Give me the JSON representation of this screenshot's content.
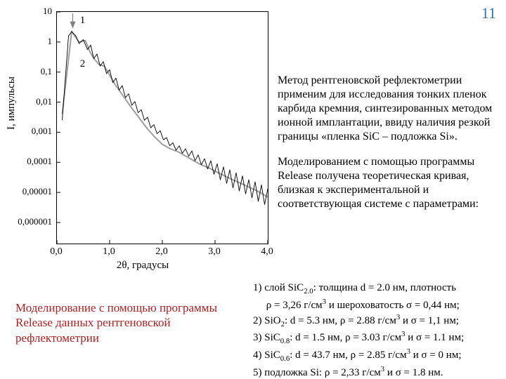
{
  "page_number": "11",
  "chart": {
    "type": "line",
    "ylabel": "I, импульсы",
    "xlabel": "2θ, градусы",
    "colors": {
      "axis": "#000000",
      "curve1_experimental": "#000000",
      "curve2_model": "#9e9e9e",
      "arrow_fill": "#808080",
      "background": "#ffffff"
    },
    "line_widths": {
      "curve1": 0.9,
      "curve2": 2.0
    },
    "xlim": [
      0.0,
      4.0
    ],
    "x_ticks": [
      {
        "v": 0.0,
        "label": "0,0"
      },
      {
        "v": 1.0,
        "label": "1,0"
      },
      {
        "v": 2.0,
        "label": "2,0"
      },
      {
        "v": 3.0,
        "label": "3,0"
      },
      {
        "v": 4.0,
        "label": "4,0"
      }
    ],
    "y_scale": "log",
    "ylim_log10": [
      -6.7,
      1.0
    ],
    "y_ticks": [
      {
        "log10": 1.0,
        "label": "10"
      },
      {
        "log10": 0.0,
        "label": "1"
      },
      {
        "log10": -1.0,
        "label": "0,1"
      },
      {
        "log10": -2.0,
        "label": "0,01"
      },
      {
        "log10": -3.0,
        "label": "0,001"
      },
      {
        "log10": -4.0,
        "label": "0,0001"
      },
      {
        "log10": -5.0,
        "label": "0,00001"
      },
      {
        "log10": -6.0,
        "label": "0,000001"
      }
    ],
    "legend_marks": [
      {
        "id": "1",
        "x": 0.45,
        "y_log10": 0.7
      },
      {
        "id": "2",
        "x": 0.45,
        "y_log10": -0.75
      }
    ],
    "arrow": {
      "x": 0.3,
      "tip_y_log10": 0.45,
      "tail_y_log10": 0.95
    },
    "series2_model": [
      {
        "x": 0.1,
        "y_log10": -2.4
      },
      {
        "x": 0.28,
        "y_log10": 0.35
      },
      {
        "x": 0.42,
        "y_log10": 0.0
      },
      {
        "x": 0.54,
        "y_log10": 0.05
      },
      {
        "x": 0.62,
        "y_log10": -0.3
      },
      {
        "x": 0.7,
        "y_log10": -0.55
      },
      {
        "x": 0.8,
        "y_log10": -0.75
      },
      {
        "x": 0.9,
        "y_log10": -0.8
      },
      {
        "x": 1.0,
        "y_log10": -1.1
      },
      {
        "x": 1.1,
        "y_log10": -1.4
      },
      {
        "x": 1.2,
        "y_log10": -1.65
      },
      {
        "x": 1.3,
        "y_log10": -1.9
      },
      {
        "x": 1.4,
        "y_log10": -2.15
      },
      {
        "x": 1.55,
        "y_log10": -2.5
      },
      {
        "x": 1.7,
        "y_log10": -2.85
      },
      {
        "x": 1.85,
        "y_log10": -3.15
      },
      {
        "x": 2.0,
        "y_log10": -3.4
      },
      {
        "x": 2.15,
        "y_log10": -3.55
      },
      {
        "x": 2.3,
        "y_log10": -3.65
      },
      {
        "x": 2.5,
        "y_log10": -3.85
      },
      {
        "x": 2.7,
        "y_log10": -4.05
      },
      {
        "x": 2.9,
        "y_log10": -4.2
      },
      {
        "x": 3.1,
        "y_log10": -4.38
      },
      {
        "x": 3.3,
        "y_log10": -4.55
      },
      {
        "x": 3.55,
        "y_log10": -4.75
      },
      {
        "x": 3.8,
        "y_log10": -4.95
      },
      {
        "x": 4.0,
        "y_log10": -5.15
      }
    ],
    "series1_experimental": [
      {
        "x": 0.1,
        "y_log10": -2.6
      },
      {
        "x": 0.22,
        "y_log10": 0.2
      },
      {
        "x": 0.28,
        "y_log10": 0.35
      },
      {
        "x": 0.36,
        "y_log10": 0.2
      },
      {
        "x": 0.42,
        "y_log10": -0.05
      },
      {
        "x": 0.5,
        "y_log10": 0.08
      },
      {
        "x": 0.58,
        "y_log10": -0.25
      },
      {
        "x": 0.64,
        "y_log10": -0.1
      },
      {
        "x": 0.7,
        "y_log10": -0.55
      },
      {
        "x": 0.76,
        "y_log10": -0.4
      },
      {
        "x": 0.82,
        "y_log10": -0.8
      },
      {
        "x": 0.88,
        "y_log10": -0.65
      },
      {
        "x": 0.94,
        "y_log10": -1.05
      },
      {
        "x": 1.0,
        "y_log10": -0.92
      },
      {
        "x": 1.06,
        "y_log10": -1.35
      },
      {
        "x": 1.12,
        "y_log10": -1.2
      },
      {
        "x": 1.18,
        "y_log10": -1.6
      },
      {
        "x": 1.24,
        "y_log10": -1.45
      },
      {
        "x": 1.3,
        "y_log10": -1.85
      },
      {
        "x": 1.36,
        "y_log10": -1.72
      },
      {
        "x": 1.42,
        "y_log10": -2.1
      },
      {
        "x": 1.48,
        "y_log10": -1.98
      },
      {
        "x": 1.54,
        "y_log10": -2.35
      },
      {
        "x": 1.6,
        "y_log10": -2.25
      },
      {
        "x": 1.66,
        "y_log10": -2.6
      },
      {
        "x": 1.72,
        "y_log10": -2.5
      },
      {
        "x": 1.78,
        "y_log10": -2.85
      },
      {
        "x": 1.84,
        "y_log10": -2.75
      },
      {
        "x": 1.9,
        "y_log10": -3.05
      },
      {
        "x": 1.96,
        "y_log10": -2.95
      },
      {
        "x": 2.02,
        "y_log10": -3.25
      },
      {
        "x": 2.08,
        "y_log10": -3.18
      },
      {
        "x": 2.14,
        "y_log10": -3.45
      },
      {
        "x": 2.2,
        "y_log10": -3.35
      },
      {
        "x": 2.26,
        "y_log10": -3.6
      },
      {
        "x": 2.32,
        "y_log10": -3.45
      },
      {
        "x": 2.38,
        "y_log10": -3.7
      },
      {
        "x": 2.44,
        "y_log10": -3.55
      },
      {
        "x": 2.5,
        "y_log10": -3.8
      },
      {
        "x": 2.56,
        "y_log10": -3.62
      },
      {
        "x": 2.62,
        "y_log10": -3.95
      },
      {
        "x": 2.68,
        "y_log10": -3.75
      },
      {
        "x": 2.74,
        "y_log10": -4.08
      },
      {
        "x": 2.8,
        "y_log10": -3.88
      },
      {
        "x": 2.86,
        "y_log10": -4.22
      },
      {
        "x": 2.92,
        "y_log10": -3.95
      },
      {
        "x": 2.98,
        "y_log10": -4.4
      },
      {
        "x": 3.04,
        "y_log10": -4.05
      },
      {
        "x": 3.1,
        "y_log10": -4.58
      },
      {
        "x": 3.16,
        "y_log10": -4.15
      },
      {
        "x": 3.22,
        "y_log10": -4.7
      },
      {
        "x": 3.28,
        "y_log10": -4.25
      },
      {
        "x": 3.34,
        "y_log10": -4.85
      },
      {
        "x": 3.4,
        "y_log10": -4.35
      },
      {
        "x": 3.46,
        "y_log10": -4.95
      },
      {
        "x": 3.52,
        "y_log10": -4.45
      },
      {
        "x": 3.58,
        "y_log10": -5.05
      },
      {
        "x": 3.64,
        "y_log10": -4.58
      },
      {
        "x": 3.7,
        "y_log10": -5.18
      },
      {
        "x": 3.76,
        "y_log10": -4.65
      },
      {
        "x": 3.82,
        "y_log10": -5.3
      },
      {
        "x": 3.88,
        "y_log10": -4.75
      },
      {
        "x": 3.94,
        "y_log10": -5.4
      },
      {
        "x": 4.0,
        "y_log10": -4.88
      }
    ]
  },
  "text_right": {
    "p1": "Метод рентгеновской рефлектометрии применим для исследования тонких пленок карбида кремния, синтезированных методом ионной имплантации, ввиду наличия резкой границы «пленка SiC – подложка Si».",
    "p2": "Моделированием с помощью программы Release получена теоретическая кривая, близкая к экспериментальной и соответствую­щая системе с параметрами:"
  },
  "caption": "Моделирование с помощью программы Release данных рентгеновской рефлектометрии",
  "layers": [
    "1) слой SiC<sub>2.0</sub>: толщина d = 2.0 нм, плотность\n    ρ = 3,26 г/см<sup>3</sup> и шероховатость σ = 0,44 нм;",
    "2) SiO<sub>2</sub>: d = 5.3 нм, ρ = 2.88 г/см<sup>3</sup> и σ = 1,1 нм;",
    "3) SiC<sub>0.8</sub>: d = 1.5 нм, ρ = 3.03 г/см<sup>3</sup> и σ = 1.1 нм;",
    "4) SiC<sub>0.6</sub>: d = 43.7 нм, ρ = 2.85 г/см<sup>3</sup> и σ = 0 нм;",
    "5) подложка Si: ρ = 2,33 г/см<sup>3</sup> и σ = 1.8 нм."
  ]
}
